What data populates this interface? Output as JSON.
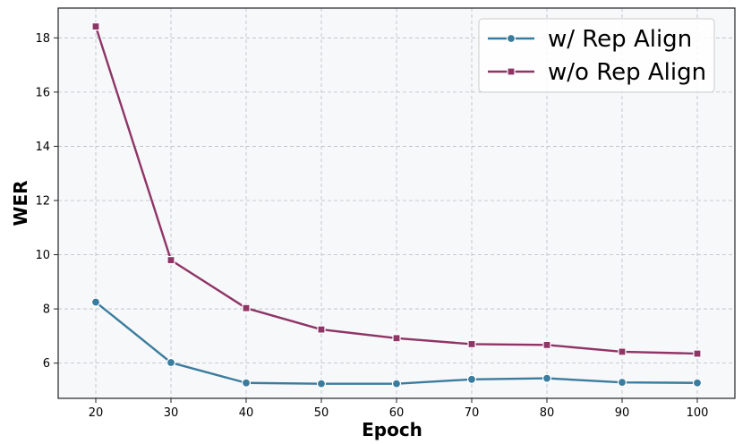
{
  "chart_data": {
    "type": "line",
    "title": "",
    "xlabel": "Epoch",
    "ylabel": "WER",
    "x": [
      20,
      30,
      40,
      50,
      60,
      70,
      80,
      90,
      100
    ],
    "xlim": [
      15,
      105
    ],
    "ylim": [
      4.7,
      19.1
    ],
    "xticks": [
      20,
      30,
      40,
      50,
      60,
      70,
      80,
      90,
      100
    ],
    "yticks": [
      6,
      8,
      10,
      12,
      14,
      16,
      18
    ],
    "grid": true,
    "legend_position": "top-right",
    "series": [
      {
        "name": "w/ Rep Align",
        "color": "#3a7c9e",
        "marker": "circle",
        "values": [
          8.25,
          6.02,
          5.27,
          5.24,
          5.24,
          5.4,
          5.44,
          5.29,
          5.27
        ]
      },
      {
        "name": "w/o Rep Align",
        "color": "#8e3566",
        "marker": "square",
        "values": [
          18.42,
          9.8,
          8.03,
          7.24,
          6.92,
          6.7,
          6.67,
          6.42,
          6.35
        ]
      }
    ]
  }
}
